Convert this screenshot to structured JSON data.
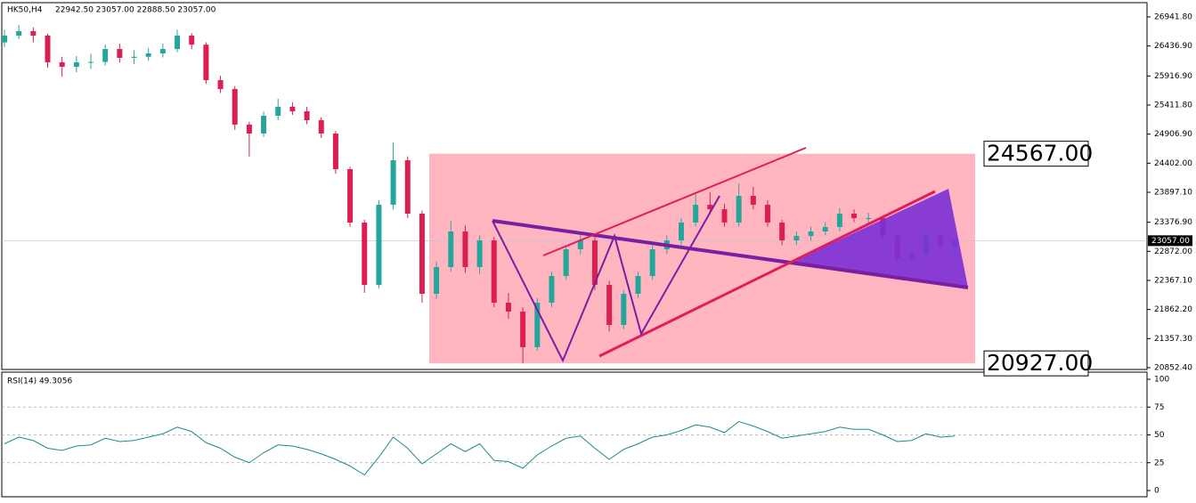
{
  "chart_data": [
    {
      "type": "candlestick",
      "title": "HK50,H4",
      "subtitle": "22942.50 23057.00 22888.50 23057.00",
      "up_color": "#26a69a",
      "down_color": "#dc1e50",
      "ylim": [
        20821.5,
        27189
      ],
      "yticks": [
        {
          "value": 26941.8,
          "label": "26941.80"
        },
        {
          "value": 26436.9,
          "label": "26436.90"
        },
        {
          "value": 25916.9,
          "label": "25916.90"
        },
        {
          "value": 25411.8,
          "label": "25411.80"
        },
        {
          "value": 24906.9,
          "label": "24906.90"
        },
        {
          "value": 24402,
          "label": "24402.00"
        },
        {
          "value": 23897.1,
          "label": "23897.10"
        },
        {
          "value": 23376.9,
          "label": "23376.90"
        },
        {
          "value": 22872,
          "label": "22872.00"
        },
        {
          "value": 22367.1,
          "label": "22367.10"
        },
        {
          "value": 21862.2,
          "label": "21862.20"
        },
        {
          "value": 21357.3,
          "label": "21357.30"
        },
        {
          "value": 20852.4,
          "label": "20852.40"
        }
      ],
      "current_price": {
        "value": 23057,
        "label": "23057.00"
      },
      "zone": [
        {
          "value": 24567,
          "label": "24567.00"
        },
        {
          "value": 20927,
          "label": "20927.00"
        }
      ],
      "candles": [
        [
          26500,
          26720,
          26420,
          26617
        ],
        [
          26617,
          26800,
          26560,
          26694
        ],
        [
          26694,
          26760,
          26500,
          26617
        ],
        [
          26617,
          26650,
          26060,
          26154
        ],
        [
          26154,
          26250,
          25900,
          26076
        ],
        [
          26076,
          26260,
          25980,
          26154
        ],
        [
          26154,
          26300,
          26040,
          26160
        ],
        [
          26160,
          26460,
          26100,
          26385
        ],
        [
          26385,
          26480,
          26150,
          26231
        ],
        [
          26231,
          26360,
          26120,
          26250
        ],
        [
          26250,
          26400,
          26180,
          26308
        ],
        [
          26308,
          26480,
          26240,
          26385
        ],
        [
          26385,
          26720,
          26330,
          26617
        ],
        [
          26617,
          26660,
          26380,
          26460
        ],
        [
          26460,
          26500,
          25780,
          25844
        ],
        [
          25844,
          25920,
          25620,
          25690
        ],
        [
          25690,
          25740,
          24980,
          25072
        ],
        [
          25072,
          25120,
          24520,
          24917
        ],
        [
          24917,
          25300,
          24860,
          25226
        ],
        [
          25226,
          25520,
          25150,
          25381
        ],
        [
          25381,
          25460,
          25240,
          25303
        ],
        [
          25303,
          25380,
          25080,
          25149
        ],
        [
          25149,
          25200,
          24840,
          24917
        ],
        [
          24917,
          24960,
          24220,
          24299
        ],
        [
          24299,
          24340,
          23300,
          23372
        ],
        [
          23372,
          23420,
          22150,
          22290
        ],
        [
          22290,
          23760,
          22230,
          23681
        ],
        [
          23681,
          24760,
          23600,
          24453
        ],
        [
          24453,
          24520,
          23450,
          23526
        ],
        [
          23526,
          23580,
          21980,
          22135
        ],
        [
          22135,
          22700,
          22050,
          22599
        ],
        [
          22599,
          23400,
          22520,
          23217
        ],
        [
          23217,
          23320,
          22500,
          22599
        ],
        [
          22599,
          23150,
          22480,
          23062
        ],
        [
          23062,
          23120,
          21900,
          21981
        ],
        [
          21981,
          22150,
          21700,
          21826
        ],
        [
          21826,
          21900,
          20927,
          21208
        ],
        [
          21208,
          22060,
          21150,
          21981
        ],
        [
          21981,
          22520,
          21900,
          22444
        ],
        [
          22444,
          22980,
          22380,
          22908
        ],
        [
          22908,
          23200,
          22820,
          23062
        ],
        [
          23062,
          23120,
          22200,
          22290
        ],
        [
          22290,
          22360,
          21480,
          21594
        ],
        [
          21594,
          22200,
          21520,
          22135
        ],
        [
          22135,
          22520,
          22060,
          22444
        ],
        [
          22444,
          22980,
          22380,
          22908
        ],
        [
          22908,
          23150,
          22830,
          23062
        ],
        [
          23062,
          23450,
          22980,
          23372
        ],
        [
          23372,
          23860,
          23300,
          23681
        ],
        [
          23681,
          23900,
          23520,
          23603
        ],
        [
          23603,
          23700,
          23300,
          23372
        ],
        [
          23372,
          24050,
          23300,
          23835
        ],
        [
          23835,
          23990,
          23600,
          23681
        ],
        [
          23681,
          23760,
          23300,
          23372
        ],
        [
          23372,
          23420,
          22980,
          23062
        ],
        [
          23062,
          23220,
          22980,
          23140
        ],
        [
          23140,
          23300,
          23060,
          23217
        ],
        [
          23217,
          23380,
          23150,
          23294
        ],
        [
          23294,
          23620,
          23220,
          23526
        ],
        [
          23526,
          23600,
          23380,
          23449
        ],
        [
          23449,
          23540,
          23360,
          23449
        ],
        [
          23449,
          23480,
          23060,
          23140
        ],
        [
          23140,
          23200,
          22680,
          22753
        ],
        [
          22753,
          22900,
          22680,
          22831
        ],
        [
          22831,
          23220,
          22760,
          23140
        ],
        [
          23140,
          23200,
          22900,
          22985
        ],
        [
          22942.5,
          23057,
          22888.5,
          23057
        ]
      ]
    },
    {
      "type": "line",
      "title": "RSI(14) 49.3056",
      "color": "#1f8a8a",
      "ylim": [
        0,
        100
      ],
      "yticks": [
        0,
        25,
        50,
        75,
        100
      ],
      "levels": [
        25,
        50,
        75
      ],
      "values": [
        42,
        48,
        45,
        38,
        36,
        40,
        41,
        47,
        44,
        45,
        48,
        51,
        57,
        53,
        43,
        38,
        30,
        25,
        34,
        41,
        40,
        37,
        33,
        28,
        22,
        14,
        30,
        48,
        38,
        24,
        33,
        42,
        35,
        42,
        27,
        26,
        20,
        32,
        40,
        47,
        49,
        38,
        28,
        37,
        42,
        48,
        50,
        54,
        59,
        57,
        52,
        62,
        58,
        53,
        47,
        49,
        51,
        53,
        57,
        55,
        55,
        50,
        44,
        45,
        51,
        48,
        49
      ]
    }
  ]
}
